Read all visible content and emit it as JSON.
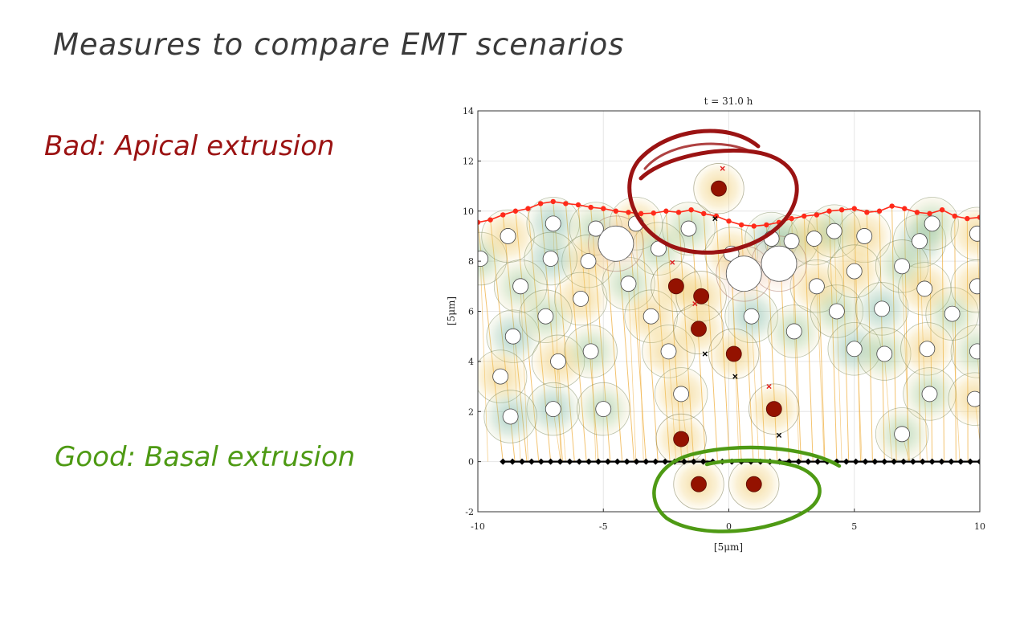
{
  "slide": {
    "title": "Measures to compare EMT scenarios",
    "bad_label": "Bad: Apical extrusion",
    "good_label": "Good: Basal extrusion"
  },
  "colors": {
    "title_ink": "#3a3a3a",
    "bad_ink": "#9b1313",
    "good_ink": "#4e9a14",
    "apical_line": "#ff2a1a",
    "basal_line": "#000000",
    "spring": "#f0b040",
    "dark_nucleus": "#941200"
  },
  "chart_data": {
    "type": "scatter",
    "title": "t = 31.0 h",
    "xlabel": "[5μm]",
    "ylabel": "[5μm]",
    "xlim": [
      -10,
      10
    ],
    "ylim": [
      -2,
      14
    ],
    "xticks": [
      -10,
      -5,
      0,
      5,
      10
    ],
    "yticks": [
      -2,
      0,
      2,
      4,
      6,
      8,
      10,
      12,
      14
    ],
    "grid": true,
    "epithelial_nuclei": [
      [
        -9.9,
        8.1
      ],
      [
        -8.8,
        9.0
      ],
      [
        -7.0,
        9.5
      ],
      [
        -5.3,
        9.3
      ],
      [
        -3.7,
        9.5
      ],
      [
        -1.6,
        9.3
      ],
      [
        0.1,
        8.3
      ],
      [
        1.7,
        8.9
      ],
      [
        2.5,
        8.8
      ],
      [
        3.4,
        8.9
      ],
      [
        4.2,
        9.2
      ],
      [
        5.4,
        9.0
      ],
      [
        7.6,
        8.8
      ],
      [
        8.1,
        9.5
      ],
      [
        9.9,
        9.1
      ],
      [
        -2.8,
        8.5
      ],
      [
        -5.6,
        8.0
      ],
      [
        -7.1,
        8.1
      ],
      [
        -8.3,
        7.0
      ],
      [
        -5.9,
        6.5
      ],
      [
        -4.0,
        7.1
      ],
      [
        -3.1,
        5.8
      ],
      [
        0.9,
        5.8
      ],
      [
        2.6,
        5.2
      ],
      [
        3.5,
        7.0
      ],
      [
        4.3,
        6.0
      ],
      [
        5.0,
        7.6
      ],
      [
        6.1,
        6.1
      ],
      [
        6.9,
        7.8
      ],
      [
        7.8,
        6.9
      ],
      [
        8.9,
        5.9
      ],
      [
        9.9,
        7.0
      ],
      [
        -8.6,
        5.0
      ],
      [
        -7.3,
        5.8
      ],
      [
        -6.8,
        4.0
      ],
      [
        -5.5,
        4.4
      ],
      [
        -2.4,
        4.4
      ],
      [
        5.0,
        4.5
      ],
      [
        6.2,
        4.3
      ],
      [
        7.9,
        4.5
      ],
      [
        9.9,
        4.4
      ],
      [
        -9.1,
        3.4
      ],
      [
        -7.0,
        2.1
      ],
      [
        -5.0,
        2.1
      ],
      [
        -1.9,
        2.7
      ],
      [
        8.0,
        2.7
      ],
      [
        9.8,
        2.5
      ],
      [
        -8.7,
        1.8
      ],
      [
        6.9,
        1.1
      ]
    ],
    "emt_nuclei_dark": [
      [
        -0.4,
        10.9
      ],
      [
        -2.1,
        7.0
      ],
      [
        -1.1,
        6.6
      ],
      [
        -1.2,
        5.3
      ],
      [
        0.2,
        4.3
      ],
      [
        1.8,
        2.1
      ],
      [
        -1.9,
        0.9
      ],
      [
        -1.2,
        -0.9
      ],
      [
        1.0,
        -0.9
      ]
    ],
    "large_white_cells": [
      [
        -4.5,
        8.7
      ],
      [
        0.6,
        7.5
      ],
      [
        2.0,
        7.9
      ]
    ],
    "apical_boundary": {
      "x": [
        -10,
        -9.5,
        -9,
        -8.5,
        -8,
        -7.5,
        -7,
        -6.5,
        -6,
        -5.5,
        -5,
        -4.5,
        -4,
        -3.5,
        -3,
        -2.5,
        -2,
        -1.5,
        -1,
        -0.5,
        0,
        0.5,
        1,
        1.5,
        2,
        2.5,
        3,
        3.5,
        4,
        4.5,
        5,
        5.5,
        6,
        6.5,
        7,
        7.5,
        8,
        8.5,
        9,
        9.5,
        10
      ],
      "y": [
        9.55,
        9.65,
        9.85,
        10.0,
        10.1,
        10.3,
        10.38,
        10.3,
        10.25,
        10.15,
        10.1,
        10.0,
        9.95,
        9.9,
        9.92,
        10.0,
        9.95,
        10.05,
        9.9,
        9.8,
        9.6,
        9.45,
        9.4,
        9.45,
        9.55,
        9.7,
        9.8,
        9.85,
        10.0,
        10.05,
        10.1,
        9.95,
        10.0,
        10.2,
        10.1,
        9.95,
        9.9,
        10.05,
        9.8,
        9.7,
        9.75
      ]
    },
    "basal_boundary": {
      "y": 0,
      "x_range": [
        -9,
        10
      ]
    }
  }
}
